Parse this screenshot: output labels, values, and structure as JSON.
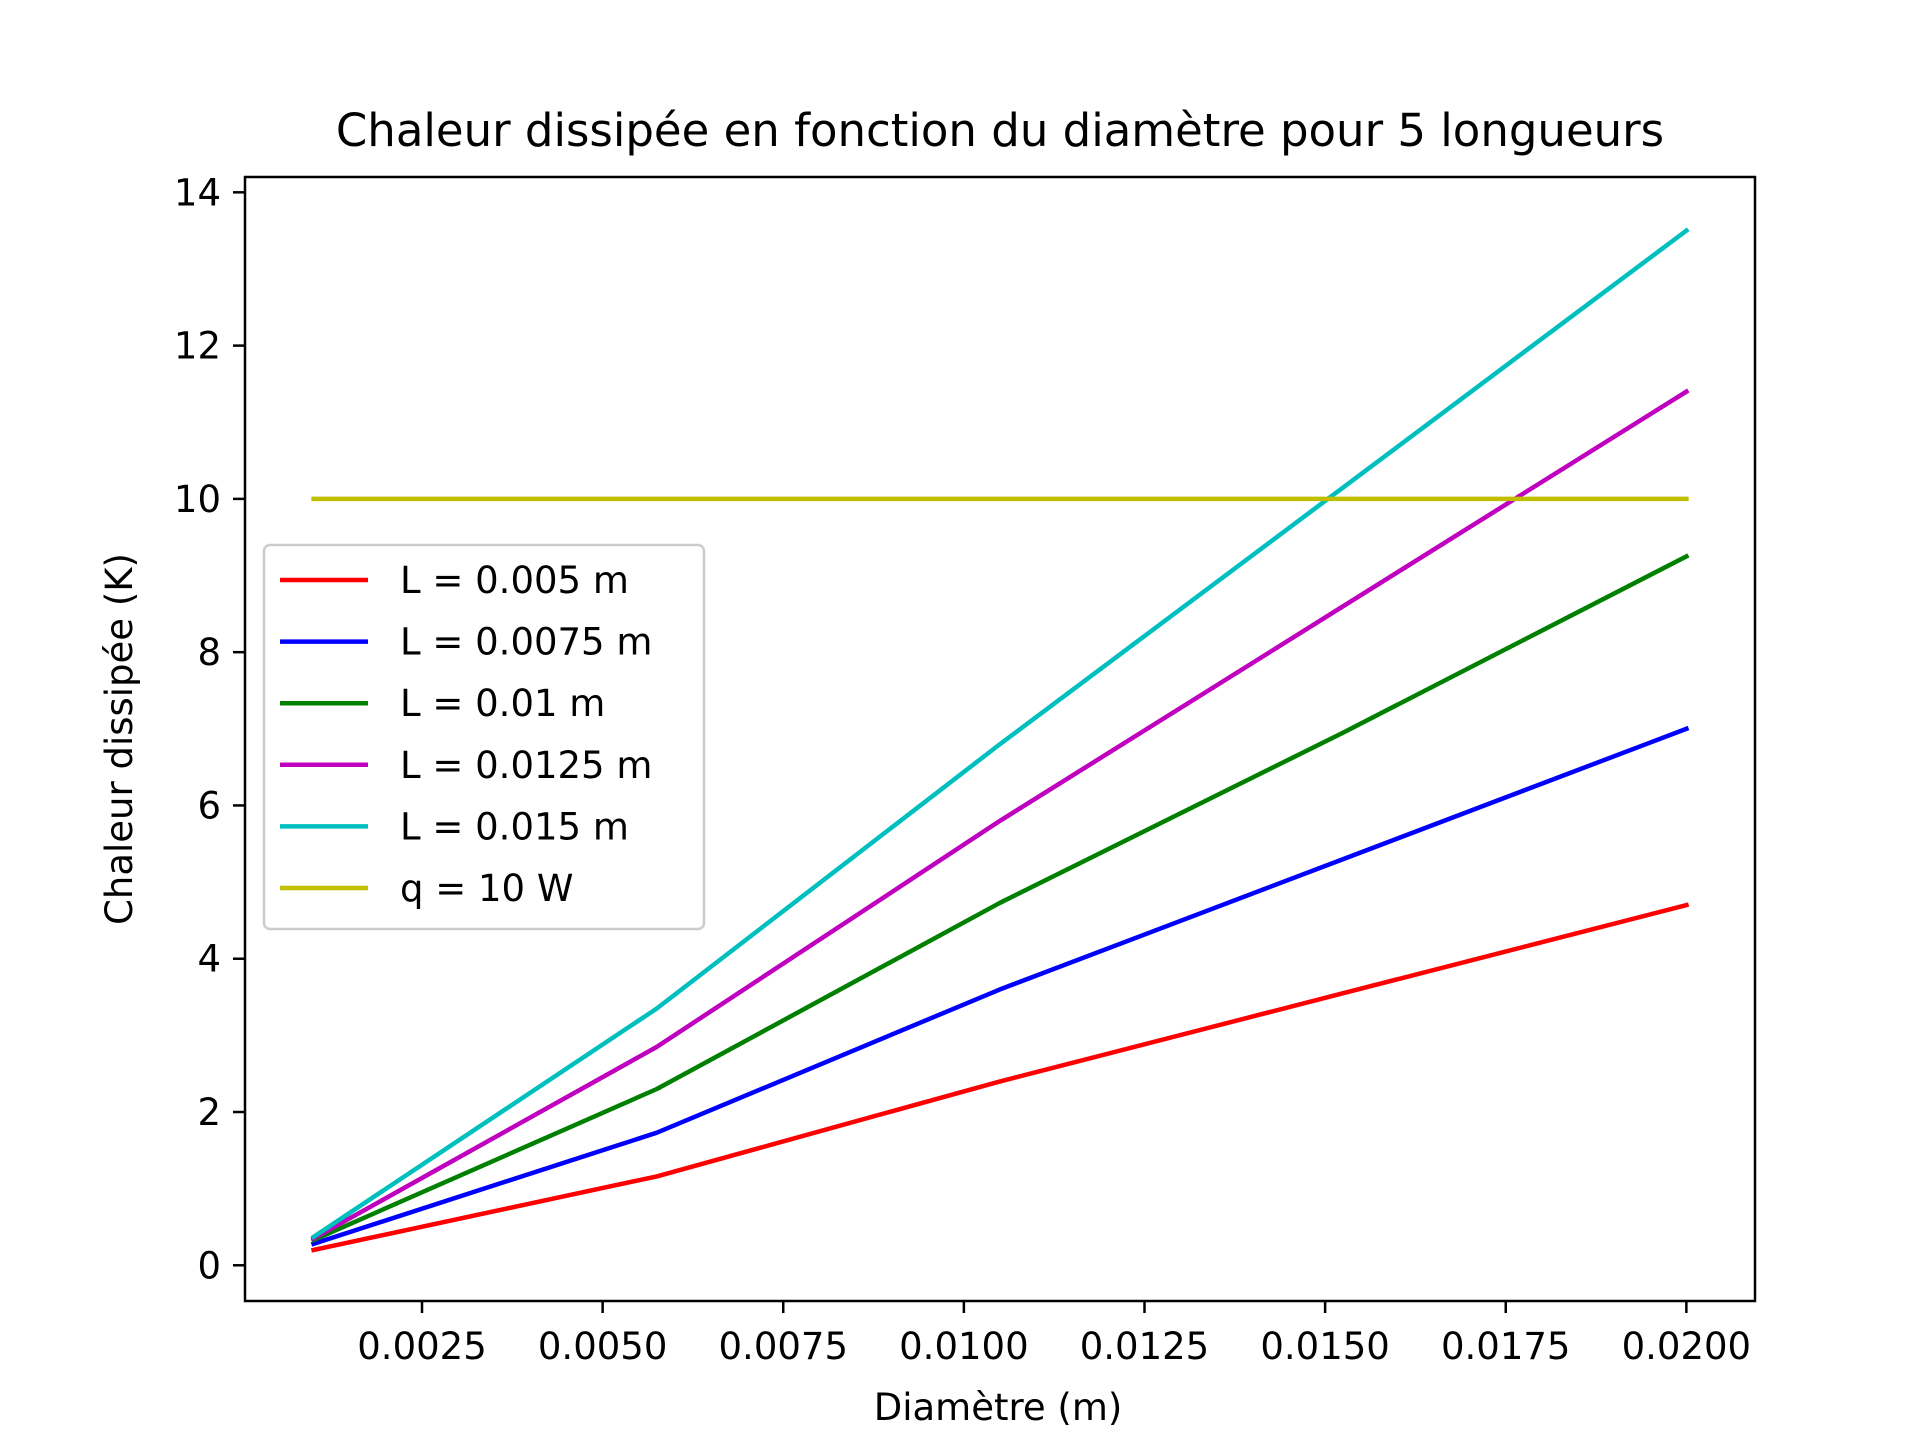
{
  "chart_data": {
    "type": "line",
    "title": "Chaleur dissipée en fonction du diamètre pour 5 longueurs",
    "xlabel": "Diamètre (m)",
    "ylabel": "Chaleur dissipée (K)",
    "xlim": [
      5e-05,
      0.02095
    ],
    "ylim": [
      -0.466,
      14.2
    ],
    "x_ticks": [
      0.0025,
      0.005,
      0.0075,
      0.01,
      0.0125,
      0.015,
      0.0175,
      0.02
    ],
    "x_tick_labels": [
      "0.0025",
      "0.0050",
      "0.0075",
      "0.0100",
      "0.0125",
      "0.0150",
      "0.0175",
      "0.0200"
    ],
    "y_ticks": [
      0,
      2,
      4,
      6,
      8,
      10,
      12,
      14
    ],
    "y_tick_labels": [
      "0",
      "2",
      "4",
      "6",
      "8",
      "10",
      "12",
      "14"
    ],
    "grid": false,
    "legend_position": "center-left",
    "series": [
      {
        "name": "L = 0.005 m",
        "color": "#ff0000",
        "x": [
          0.001,
          0.00575,
          0.0105,
          0.01525,
          0.02
        ],
        "y": [
          0.2,
          1.16,
          2.4,
          3.55,
          4.7
        ]
      },
      {
        "name": "L = 0.0075 m",
        "color": "#0000ff",
        "x": [
          0.001,
          0.00575,
          0.0105,
          0.01525,
          0.02
        ],
        "y": [
          0.28,
          1.73,
          3.6,
          5.3,
          7.0
        ]
      },
      {
        "name": "L = 0.01 m",
        "color": "#008000",
        "x": [
          0.001,
          0.00575,
          0.0105,
          0.01525,
          0.02
        ],
        "y": [
          0.33,
          2.3,
          4.73,
          6.95,
          9.25
        ]
      },
      {
        "name": "L = 0.0125 m",
        "color": "#bf00bf",
        "x": [
          0.001,
          0.00575,
          0.0105,
          0.01525,
          0.02
        ],
        "y": [
          0.35,
          2.85,
          5.8,
          8.6,
          11.4
        ]
      },
      {
        "name": "L = 0.015 m",
        "color": "#00bfbf",
        "x": [
          0.001,
          0.00575,
          0.0105,
          0.01525,
          0.02
        ],
        "y": [
          0.37,
          3.35,
          6.8,
          10.15,
          13.5
        ]
      },
      {
        "name": "q = 10 W",
        "color": "#bfbf00",
        "x": [
          0.001,
          0.02
        ],
        "y": [
          10,
          10
        ]
      }
    ]
  }
}
